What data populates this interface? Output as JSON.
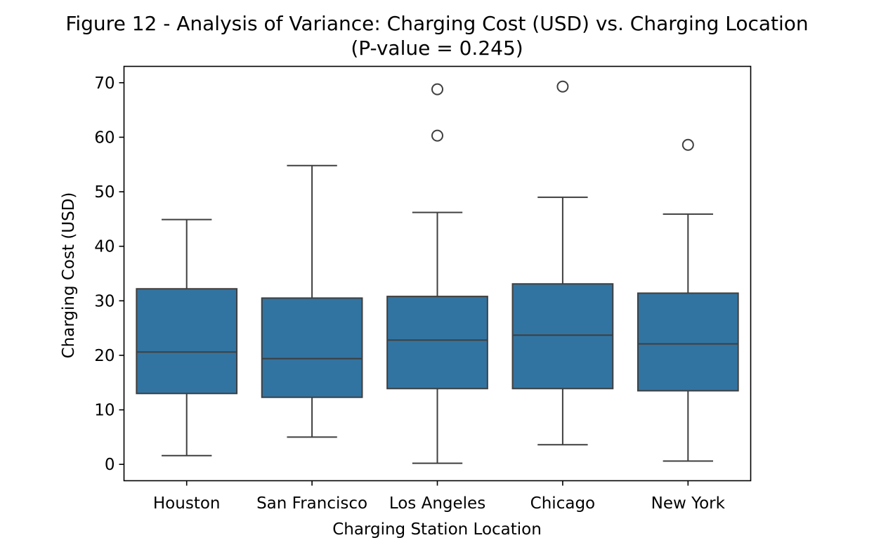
{
  "chart_data": {
    "type": "box",
    "title": "Figure 12 - Analysis of Variance: Charging Cost (USD) vs. Charging Location",
    "subtitle": "(P-value = 0.245)",
    "xlabel": "Charging Station Location",
    "ylabel": "Charging Cost (USD)",
    "ylim": [
      -3,
      73
    ],
    "yticks": [
      0,
      10,
      20,
      30,
      40,
      50,
      60,
      70
    ],
    "grid": false,
    "box_color": "#3274a1",
    "line_color": "#3f3f3f",
    "categories": [
      "Houston",
      "San Francisco",
      "Los Angeles",
      "Chicago",
      "New York"
    ],
    "series": [
      {
        "category": "Houston",
        "min": 1.6,
        "q1": 13.0,
        "median": 20.6,
        "q3": 32.2,
        "max": 44.9,
        "outliers": []
      },
      {
        "category": "San Francisco",
        "min": 5.0,
        "q1": 12.3,
        "median": 19.4,
        "q3": 30.5,
        "max": 54.8,
        "outliers": []
      },
      {
        "category": "Los Angeles",
        "min": 0.2,
        "q1": 13.9,
        "median": 22.8,
        "q3": 30.8,
        "max": 46.2,
        "outliers": [
          60.3,
          68.8
        ]
      },
      {
        "category": "Chicago",
        "min": 3.6,
        "q1": 13.9,
        "median": 23.7,
        "q3": 33.1,
        "max": 49.0,
        "outliers": [
          69.3
        ]
      },
      {
        "category": "New York",
        "min": 0.6,
        "q1": 13.5,
        "median": 22.1,
        "q3": 31.4,
        "max": 45.9,
        "outliers": [
          58.6
        ]
      }
    ]
  }
}
